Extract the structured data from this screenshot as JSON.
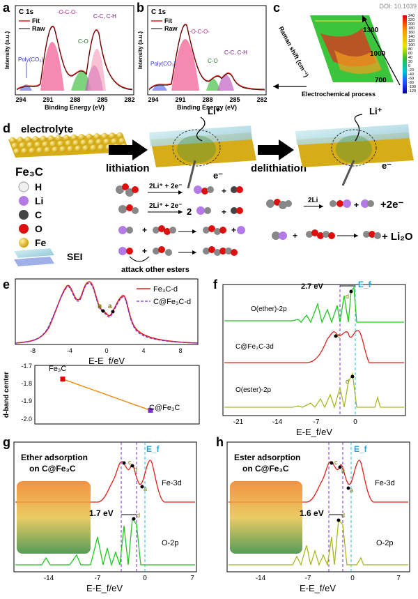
{
  "panel_labels": {
    "a": "a",
    "b": "b",
    "c": "c",
    "d": "d",
    "e": "e",
    "f": "f",
    "g": "g",
    "h": "h"
  },
  "watermark": "DOI: 10.1039",
  "xps_a": {
    "title": "C 1s",
    "legend": [
      "Fit",
      "Raw"
    ],
    "ylabel": "Intensity (a.u.)",
    "xlabel": "Binding Energy (eV)",
    "xticks": [
      "294",
      "291",
      "288",
      "285",
      "282"
    ],
    "peaks": [
      "Poly(CO₃)",
      "-O-C-O-",
      "C-O",
      "C-C, C-H"
    ]
  },
  "xps_b": {
    "title": "C 1s",
    "legend": [
      "Fit",
      "Raw"
    ],
    "ylabel": "Intensity (a.u.)",
    "xlabel": "Binding Energy (eV)",
    "xticks": [
      "294",
      "291",
      "288",
      "285",
      "282"
    ],
    "peaks": [
      "Poly(CO₃)",
      "-O-C-O-",
      "C-O",
      "C-C, C-H"
    ]
  },
  "raman": {
    "ylabel": "Raman shift (cm⁻¹)",
    "xlabel": "Electrochemical process",
    "marks": [
      "1300",
      "1000",
      "700"
    ],
    "colorbar": [
      "240",
      "220",
      "200",
      "180",
      "160",
      "140",
      "120",
      "100",
      "80",
      "60",
      "40",
      "20",
      "0",
      "-20",
      "-40",
      "-60",
      "-80",
      "-100",
      "-120"
    ]
  },
  "scheme": {
    "electrolyte": "electrolyte",
    "fe3c": "Fe₃C",
    "lithiation": "lithiation",
    "delithiation": "delithiation",
    "li_plus": "Li⁺",
    "e_minus": "e⁻",
    "legend": [
      "H",
      "Li",
      "C",
      "O",
      "Fe"
    ],
    "sei": "SEI",
    "reaction1": "2Li⁺ + 2e⁻",
    "reaction2": "2Li⁺ + 2e⁻",
    "coef2": "2",
    "attack": "attack other esters",
    "reaction_delith": "2Li",
    "plus_2e": "+2e⁻",
    "li2o": "+ Li₂O"
  },
  "dos_e": {
    "legend": [
      "Fe₃C-d",
      "C@Fe₃C-d"
    ],
    "xlabel": "E-E_f/eV",
    "xticks": [
      "-8",
      "-4",
      "0",
      "4",
      "8"
    ],
    "points": [
      "a",
      "b"
    ],
    "colors": {
      "fe3c": "#e0201b",
      "cfe3c": "#7a2fd1"
    }
  },
  "dband": {
    "ylabel": "d-band center",
    "yticks": [
      "-1.7",
      "-1.8",
      "-1.9",
      "-2.0"
    ],
    "points": [
      {
        "label": "Fe₃C",
        "value": -1.77
      },
      {
        "label": "C@Fe₃C",
        "value": -1.93
      }
    ]
  },
  "dos_f": {
    "gap": "2.7 eV",
    "ef": "E_f",
    "curves": [
      "O(ether)-2p",
      "C@Fe₃C-3d",
      "O(ester)-2p"
    ],
    "xlabel": "E-E_f/eV",
    "xticks": [
      "-21",
      "-14",
      "-7",
      "0"
    ],
    "points": [
      "d",
      "c",
      "d"
    ]
  },
  "dos_g": {
    "title1": "Ether adsorption",
    "title2": "on C@Fe₃C",
    "gap": "1.7 eV",
    "curves": [
      "Fe-3d",
      "O-2p"
    ],
    "xlabel": "E-E_f/eV",
    "xticks": [
      "-14",
      "-7",
      "0",
      "7"
    ],
    "ef": "E_f",
    "points": [
      "c",
      "b",
      "a",
      "d"
    ]
  },
  "dos_h": {
    "title1": "Ester adsorption",
    "title2": "on C@Fe₃C",
    "gap": "1.6 eV",
    "curves": [
      "Fe-3d",
      "O-2p"
    ],
    "xlabel": "E-E_f/eV",
    "xticks": [
      "-14",
      "-7",
      "0",
      "7"
    ],
    "ef": "E_f",
    "points": [
      "c",
      "b",
      "a",
      "d"
    ]
  }
}
